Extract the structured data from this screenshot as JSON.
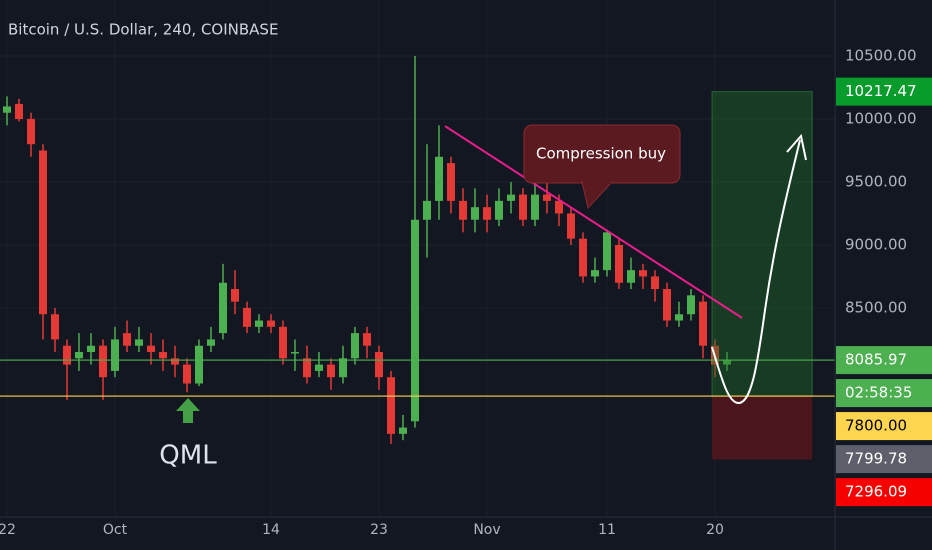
{
  "chart_data": {
    "type": "candlestick",
    "title": "Bitcoin / U.S. Dollar, 240, COINBASE",
    "x": [
      0,
      1,
      2,
      3,
      4,
      5,
      6,
      7,
      8,
      9,
      10,
      11,
      12,
      13,
      14,
      15,
      16,
      17,
      18,
      19,
      20,
      21,
      22,
      23,
      24,
      25,
      26,
      27,
      28,
      29,
      30,
      31,
      32,
      33,
      34,
      35,
      36,
      37,
      38,
      39,
      40,
      41,
      42,
      43,
      44,
      45,
      46,
      47,
      48,
      49,
      50,
      51,
      52,
      53,
      54,
      55,
      56,
      57,
      58,
      59,
      60
    ],
    "open": [
      10050,
      10120,
      10000,
      9750,
      8450,
      8200,
      8100,
      8150,
      8200,
      8000,
      8300,
      8200,
      8200,
      8150,
      8100,
      8050,
      7900,
      8200,
      8300,
      8650,
      8500,
      8350,
      8400,
      8350,
      8150,
      8100,
      8000,
      8050,
      7950,
      8100,
      8300,
      8150,
      7950,
      7500,
      7600,
      9200,
      9350,
      9650,
      9350,
      9200,
      9300,
      9200,
      9350,
      9400,
      9200,
      9400,
      9350,
      9250,
      9050,
      8750,
      8800,
      9000,
      8700,
      8800,
      8750,
      8650,
      8400,
      8450,
      8550,
      8200,
      8050
    ],
    "high": [
      10180,
      10160,
      10050,
      9800,
      8500,
      8250,
      8300,
      8300,
      8250,
      8350,
      8400,
      8350,
      8300,
      8250,
      8200,
      8100,
      8250,
      8350,
      8850,
      8800,
      8550,
      8450,
      8450,
      8400,
      8250,
      8200,
      8150,
      8100,
      8200,
      8350,
      8350,
      8200,
      8000,
      7650,
      10500,
      9800,
      9950,
      9700,
      9450,
      9450,
      9400,
      9450,
      9500,
      9450,
      9500,
      9550,
      9400,
      9300,
      9100,
      8900,
      9120,
      9050,
      8900,
      8850,
      8800,
      8700,
      8550,
      8650,
      8600,
      8250,
      8150
    ],
    "low": [
      9950,
      9980,
      9700,
      8250,
      8150,
      7770,
      8000,
      8050,
      7770,
      7950,
      8150,
      8150,
      8050,
      8000,
      7950,
      7830,
      7880,
      8150,
      8250,
      8450,
      8300,
      8300,
      8300,
      8050,
      8000,
      7900,
      7950,
      7850,
      7900,
      8050,
      8100,
      7850,
      7420,
      7450,
      7550,
      8900,
      9200,
      9250,
      9100,
      9100,
      9100,
      9150,
      9250,
      9150,
      9150,
      9250,
      9150,
      9000,
      8700,
      8700,
      8750,
      8650,
      8650,
      8650,
      8550,
      8350,
      8350,
      8400,
      8100,
      7950,
      8000
    ],
    "close": [
      10100,
      10000,
      9800,
      8450,
      8250,
      8050,
      8150,
      8200,
      7950,
      8250,
      8200,
      8250,
      8150,
      8100,
      8050,
      7900,
      8200,
      8250,
      8700,
      8550,
      8350,
      8400,
      8350,
      8100,
      8150,
      7950,
      8050,
      7950,
      8100,
      8300,
      8200,
      7950,
      7500,
      7550,
      9200,
      9350,
      9700,
      9350,
      9200,
      9300,
      9200,
      9350,
      9400,
      9200,
      9400,
      9350,
      9250,
      9050,
      8750,
      8800,
      9100,
      8700,
      8800,
      8750,
      8650,
      8400,
      8450,
      8600,
      8200,
      8050,
      8085.97
    ],
    "up_color": "#4caf50",
    "down_color": "#e53935",
    "xlim": [
      -0.5833,
      69
    ],
    "ylim": [
      6840,
      10945
    ],
    "xticks": [
      {
        "value": 0,
        "label": "22"
      },
      {
        "value": 9,
        "label": "Oct"
      },
      {
        "value": 22,
        "label": "14"
      },
      {
        "value": 31,
        "label": "23"
      },
      {
        "value": 40,
        "label": "Nov"
      },
      {
        "value": 50,
        "label": "11"
      },
      {
        "value": 59,
        "label": "20"
      }
    ],
    "yticks": [
      {
        "value": 8500,
        "label": "8500.00"
      },
      {
        "value": 9000,
        "label": "9000.00"
      },
      {
        "value": 9500,
        "label": "9500.00"
      },
      {
        "value": 10000,
        "label": "10000.00"
      },
      {
        "value": 10500,
        "label": "10500.00"
      }
    ],
    "grid": true,
    "price_labels": [
      {
        "value": 10217.47,
        "label": "10217.47",
        "color": "#089c2c",
        "text_color": "#ffffff"
      },
      {
        "value": 8085.97,
        "label": "8085.97",
        "color": "#4caf50",
        "text_color": "#ffffff",
        "line": true
      },
      {
        "label": "02:58:35",
        "color": "#4caf50",
        "text_color": "#ffffff"
      },
      {
        "value": 7800,
        "label": "7800.00",
        "color": "#ffd54f",
        "text_color": "#000000",
        "line": true
      },
      {
        "value": 7799.78,
        "label": "7799.78",
        "color": "#5d606b",
        "text_color": "#ffffff"
      },
      {
        "value": 7296.09,
        "label": "7296.09",
        "color": "#f70000",
        "text_color": "#ffffff"
      }
    ],
    "position": {
      "x": [
        58.75,
        67.1
      ],
      "top": 10217.47,
      "entry": 7800,
      "bottom": 7296.09
    },
    "trendline": {
      "x": [
        36.5,
        61.25
      ],
      "y": [
        9944,
        8421
      ],
      "color": "#e91e8c"
    },
    "annotations": {
      "callout": "Compression buy",
      "qml": "QML"
    }
  }
}
